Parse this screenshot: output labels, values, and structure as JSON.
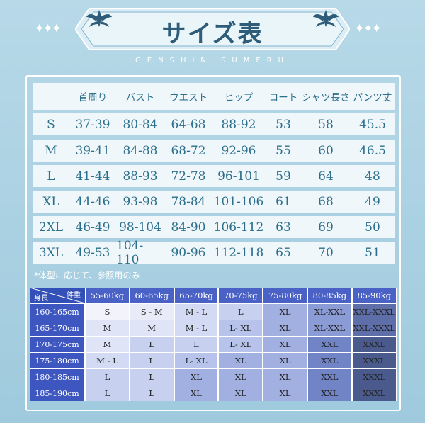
{
  "header": {
    "title": "サイズ表",
    "subtitle": "GENSHIN SUMERU",
    "sparkles_left": "✦✦✦",
    "sparkles_right": "✦✦✦"
  },
  "garment_table": {
    "headers": [
      "",
      "首周り",
      "バスト",
      "ウエスト",
      "ヒップ",
      "コート",
      "シャツ長さ",
      "パンツ丈"
    ],
    "rows": [
      [
        "S",
        "37-39",
        "80-84",
        "64-68",
        "88-92",
        "53",
        "58",
        "45.5"
      ],
      [
        "M",
        "39-41",
        "84-88",
        "68-72",
        "92-96",
        "55",
        "60",
        "46.5"
      ],
      [
        "L",
        "41-44",
        "88-93",
        "72-78",
        "96-101",
        "59",
        "64",
        "48"
      ],
      [
        "XL",
        "44-46",
        "93-98",
        "78-84",
        "101-106",
        "61",
        "68",
        "49"
      ],
      [
        "2XL",
        "46-49",
        "98-104",
        "84-90",
        "106-112",
        "63",
        "69",
        "50"
      ],
      [
        "3XL",
        "49-53",
        "104-110",
        "90-96",
        "112-118",
        "65",
        "70",
        "51"
      ]
    ]
  },
  "note": "*体型に応じて、参照用のみ",
  "body_table": {
    "corner_top": "体重",
    "corner_bottom": "身長",
    "weights": [
      "55-60kg",
      "60-65kg",
      "65-70kg",
      "70-75kg",
      "75-80kg",
      "80-85kg",
      "85-90kg"
    ],
    "heights": [
      "160-165cm",
      "165-170cm",
      "170-175cm",
      "175-180cm",
      "180-185cm",
      "185-190cm"
    ],
    "cells": [
      [
        "S",
        "S - M",
        "M - L",
        "L",
        "XL",
        "XL-XXL",
        "XXL-XXXL"
      ],
      [
        "M",
        "M",
        "M - L",
        "L- XL",
        "XL",
        "XL-XXL",
        "XXL-XXXL"
      ],
      [
        "M",
        "L",
        "L",
        "L- XL",
        "XL",
        "XXL",
        "XXXL"
      ],
      [
        "M - L",
        "L",
        "L- XL",
        "XL",
        "XL",
        "XXL",
        "XXXL"
      ],
      [
        "L",
        "L",
        "XL",
        "XL",
        "XL",
        "XXL",
        "XXXL"
      ],
      [
        "L",
        "L",
        "XL",
        "XL",
        "XL",
        "XXL",
        "XXXL"
      ]
    ]
  },
  "colors": {
    "accent": "#2c6f8c",
    "header_blue": "#4a62c6"
  }
}
